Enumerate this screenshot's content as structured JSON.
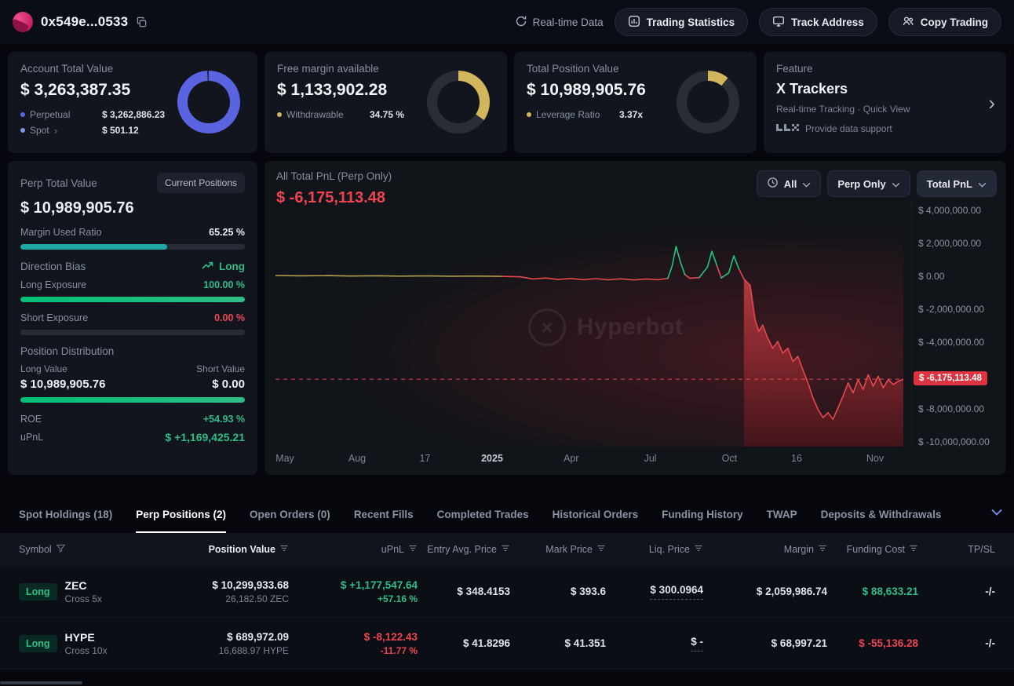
{
  "icons": {
    "chevron_right": "›",
    "watermark_mark": "×"
  },
  "topbar": {
    "address": "0x549e...0533",
    "realtime_label": "Real-time Data",
    "buttons": [
      {
        "label": "Trading Statistics"
      },
      {
        "label": "Track Address"
      },
      {
        "label": "Copy Trading"
      }
    ]
  },
  "summary_cards": {
    "account": {
      "title": "Account Total Value",
      "value": "$ 3,263,387.35",
      "row1_label": "Perpetual",
      "row1_value": "$ 3,262,886.23",
      "row2_label": "Spot",
      "row2_value": "$ 501.12",
      "donut": {
        "color": "#5a64e0",
        "track": "#232838",
        "percent": 99.2
      }
    },
    "free_margin": {
      "title": "Free margin available",
      "value": "$ 1,133,902.28",
      "row_label": "Withdrawable",
      "row_value": "34.75 %",
      "donut": {
        "color": "#d2b65c",
        "track": "#2a2d36",
        "percent": 34.75
      }
    },
    "position": {
      "title": "Total Position Value",
      "value": "$ 10,989,905.76",
      "row_label": "Leverage Ratio",
      "row_value": "3.37x",
      "donut": {
        "color": "#d2b65c",
        "track": "#2a2d36",
        "percent": 11
      }
    },
    "feature": {
      "title": "Feature",
      "name": "X Trackers",
      "subtitle": "Real-time Tracking · Quick View",
      "support": "Provide data support"
    }
  },
  "perp_panel": {
    "title": "Perp Total Value",
    "badge": "Current Positions",
    "value": "$ 10,989,905.76",
    "margin_used_label": "Margin Used Ratio",
    "margin_used_value": "65.25 %",
    "margin_used_percent": 65.25,
    "direction_bias_label": "Direction Bias",
    "direction_bias_value": "Long",
    "long_exposure_label": "Long Exposure",
    "long_exposure_value": "100.00 %",
    "long_exposure_percent": 100,
    "short_exposure_label": "Short Exposure",
    "short_exposure_value": "0.00 %",
    "short_exposure_percent": 0,
    "distribution_label": "Position Distribution",
    "long_value_label": "Long Value",
    "short_value_label": "Short Value",
    "long_value": "$ 10,989,905.76",
    "short_value": "$ 0.00",
    "long_ratio_percent": 100,
    "roe_label": "ROE",
    "roe_value": "+54.93 %",
    "upnl_label": "uPnL",
    "upnl_value": "$ +1,169,425.21"
  },
  "chart_panel": {
    "title": "All Total PnL (Perp Only)",
    "value": "$ -6,175,113.48",
    "current_label": "$ -6,175,113.48",
    "watermark": "Hyperbot",
    "filters": [
      {
        "label": "All"
      },
      {
        "label": "Perp Only"
      },
      {
        "label": "Total PnL"
      }
    ]
  },
  "chart_data": {
    "type": "area",
    "title": "All Total PnL (Perp Only)",
    "current_value": -6175113.48,
    "ylim": [
      -10250000,
      4550000
    ],
    "fill_from": 0.746,
    "colors": {
      "y": "#b3a04d",
      "g": "#21c77d",
      "r": "#e5484d"
    },
    "y_ticks": [
      {
        "label": "$ 4,000,000.00",
        "value": 4000000
      },
      {
        "label": "$ 2,000,000.00",
        "value": 2000000
      },
      {
        "label": "$ 0.00",
        "value": 0
      },
      {
        "label": "$ -2,000,000.00",
        "value": -2000000
      },
      {
        "label": "$ -4,000,000.00",
        "value": -4000000
      },
      {
        "label": "$ -6,000,000.00",
        "value": -6000000
      },
      {
        "label": "$ -8,000,000.00",
        "value": -8000000
      },
      {
        "label": "$ -10,000,000.00",
        "value": -10000000
      }
    ],
    "x_ticks": [
      {
        "label": "May",
        "x": 0.015
      },
      {
        "label": "Aug",
        "x": 0.13
      },
      {
        "label": "17",
        "x": 0.238
      },
      {
        "label": "2025",
        "x": 0.345,
        "strong": true
      },
      {
        "label": "Apr",
        "x": 0.471
      },
      {
        "label": "Jul",
        "x": 0.597
      },
      {
        "label": "Oct",
        "x": 0.723
      },
      {
        "label": "16",
        "x": 0.83
      },
      {
        "label": "Nov",
        "x": 0.955
      }
    ],
    "points": [
      {
        "x": 0.0,
        "v": 90000,
        "c": "y"
      },
      {
        "x": 0.04,
        "v": 70000,
        "c": "y"
      },
      {
        "x": 0.08,
        "v": 85000,
        "c": "y"
      },
      {
        "x": 0.12,
        "v": 60000,
        "c": "y"
      },
      {
        "x": 0.16,
        "v": 75000,
        "c": "y"
      },
      {
        "x": 0.2,
        "v": 55000,
        "c": "y"
      },
      {
        "x": 0.24,
        "v": 70000,
        "c": "y"
      },
      {
        "x": 0.28,
        "v": 50000,
        "c": "y"
      },
      {
        "x": 0.32,
        "v": 60000,
        "c": "y"
      },
      {
        "x": 0.36,
        "v": 40000,
        "c": "y"
      },
      {
        "x": 0.39,
        "v": 10000
      },
      {
        "x": 0.41,
        "v": -120000
      },
      {
        "x": 0.43,
        "v": -60000
      },
      {
        "x": 0.45,
        "v": -150000
      },
      {
        "x": 0.47,
        "v": -90000
      },
      {
        "x": 0.49,
        "v": -160000
      },
      {
        "x": 0.51,
        "v": -100000
      },
      {
        "x": 0.53,
        "v": -170000
      },
      {
        "x": 0.55,
        "v": -110000
      },
      {
        "x": 0.57,
        "v": -180000
      },
      {
        "x": 0.59,
        "v": -120000
      },
      {
        "x": 0.61,
        "v": -160000
      },
      {
        "x": 0.625,
        "v": -80000
      },
      {
        "x": 0.632,
        "v": 700000,
        "c": "g"
      },
      {
        "x": 0.638,
        "v": 1850000,
        "c": "g"
      },
      {
        "x": 0.645,
        "v": 900000,
        "c": "g"
      },
      {
        "x": 0.652,
        "v": 150000,
        "c": "g"
      },
      {
        "x": 0.66,
        "v": -80000
      },
      {
        "x": 0.675,
        "v": -30000
      },
      {
        "x": 0.688,
        "v": 600000,
        "c": "g"
      },
      {
        "x": 0.695,
        "v": 1550000,
        "c": "g"
      },
      {
        "x": 0.703,
        "v": 700000,
        "c": "g"
      },
      {
        "x": 0.71,
        "v": -60000
      },
      {
        "x": 0.722,
        "v": 250000,
        "c": "g"
      },
      {
        "x": 0.73,
        "v": 1280000,
        "c": "g"
      },
      {
        "x": 0.738,
        "v": 500000,
        "c": "g"
      },
      {
        "x": 0.746,
        "v": -120000
      },
      {
        "x": 0.756,
        "v": -500000
      },
      {
        "x": 0.764,
        "v": -2600000
      },
      {
        "x": 0.77,
        "v": -3300000
      },
      {
        "x": 0.776,
        "v": -2900000
      },
      {
        "x": 0.784,
        "v": -3700000
      },
      {
        "x": 0.792,
        "v": -4300000
      },
      {
        "x": 0.8,
        "v": -3900000
      },
      {
        "x": 0.808,
        "v": -4600000
      },
      {
        "x": 0.816,
        "v": -4300000
      },
      {
        "x": 0.824,
        "v": -5100000
      },
      {
        "x": 0.832,
        "v": -4800000
      },
      {
        "x": 0.84,
        "v": -5600000
      },
      {
        "x": 0.848,
        "v": -6400000
      },
      {
        "x": 0.856,
        "v": -7300000
      },
      {
        "x": 0.864,
        "v": -8000000
      },
      {
        "x": 0.872,
        "v": -8500000
      },
      {
        "x": 0.88,
        "v": -8200000
      },
      {
        "x": 0.888,
        "v": -8600000
      },
      {
        "x": 0.896,
        "v": -7900000
      },
      {
        "x": 0.904,
        "v": -7200000
      },
      {
        "x": 0.912,
        "v": -6400000
      },
      {
        "x": 0.92,
        "v": -7000000
      },
      {
        "x": 0.928,
        "v": -6200000
      },
      {
        "x": 0.936,
        "v": -6800000
      },
      {
        "x": 0.944,
        "v": -5900000
      },
      {
        "x": 0.952,
        "v": -6600000
      },
      {
        "x": 0.96,
        "v": -6000000
      },
      {
        "x": 0.968,
        "v": -6700000
      },
      {
        "x": 0.976,
        "v": -6200000
      },
      {
        "x": 0.984,
        "v": -6500000
      },
      {
        "x": 0.992,
        "v": -6300000
      },
      {
        "x": 1.0,
        "v": -6175113
      }
    ]
  },
  "tabs": {
    "items": [
      {
        "label": "Spot Holdings (18)"
      },
      {
        "label": "Perp Positions (2)"
      },
      {
        "label": "Open Orders (0)"
      },
      {
        "label": "Recent Fills"
      },
      {
        "label": "Completed Trades"
      },
      {
        "label": "Historical Orders"
      },
      {
        "label": "Funding History"
      },
      {
        "label": "TWAP"
      },
      {
        "label": "Deposits & Withdrawals"
      }
    ]
  },
  "table": {
    "columns": [
      {
        "label": "Symbol"
      },
      {
        "label": "Position Value"
      },
      {
        "label": "uPnL"
      },
      {
        "label": "Entry Avg. Price"
      },
      {
        "label": "Mark Price"
      },
      {
        "label": "Liq. Price"
      },
      {
        "label": "Margin"
      },
      {
        "label": "Funding Cost"
      },
      {
        "label": "TP/SL"
      }
    ],
    "rows": [
      {
        "side": "Long",
        "symbol": "ZEC",
        "leverage": "Cross 5x",
        "position_value": "$ 10,299,933.68",
        "position_size": "26,182.50 ZEC",
        "upnl": "$ +1,177,547.64",
        "upnl_pct": "+57.16 %",
        "entry": "$ 348.4153",
        "mark": "$ 393.6",
        "liq": "$ 300.0964",
        "margin": "$ 2,059,986.74",
        "funding": "$ 88,633.21",
        "tpsl": "-/-"
      },
      {
        "side": "Long",
        "symbol": "HYPE",
        "leverage": "Cross 10x",
        "position_value": "$ 689,972.09",
        "position_size": "16,688.97 HYPE",
        "upnl": "$ -8,122.43",
        "upnl_pct": "-11.77 %",
        "entry": "$ 41.8296",
        "mark": "$ 41.351",
        "liq": "$ -",
        "margin": "$ 68,997.21",
        "funding": "$ -55,136.28",
        "tpsl": "-/-"
      }
    ]
  }
}
